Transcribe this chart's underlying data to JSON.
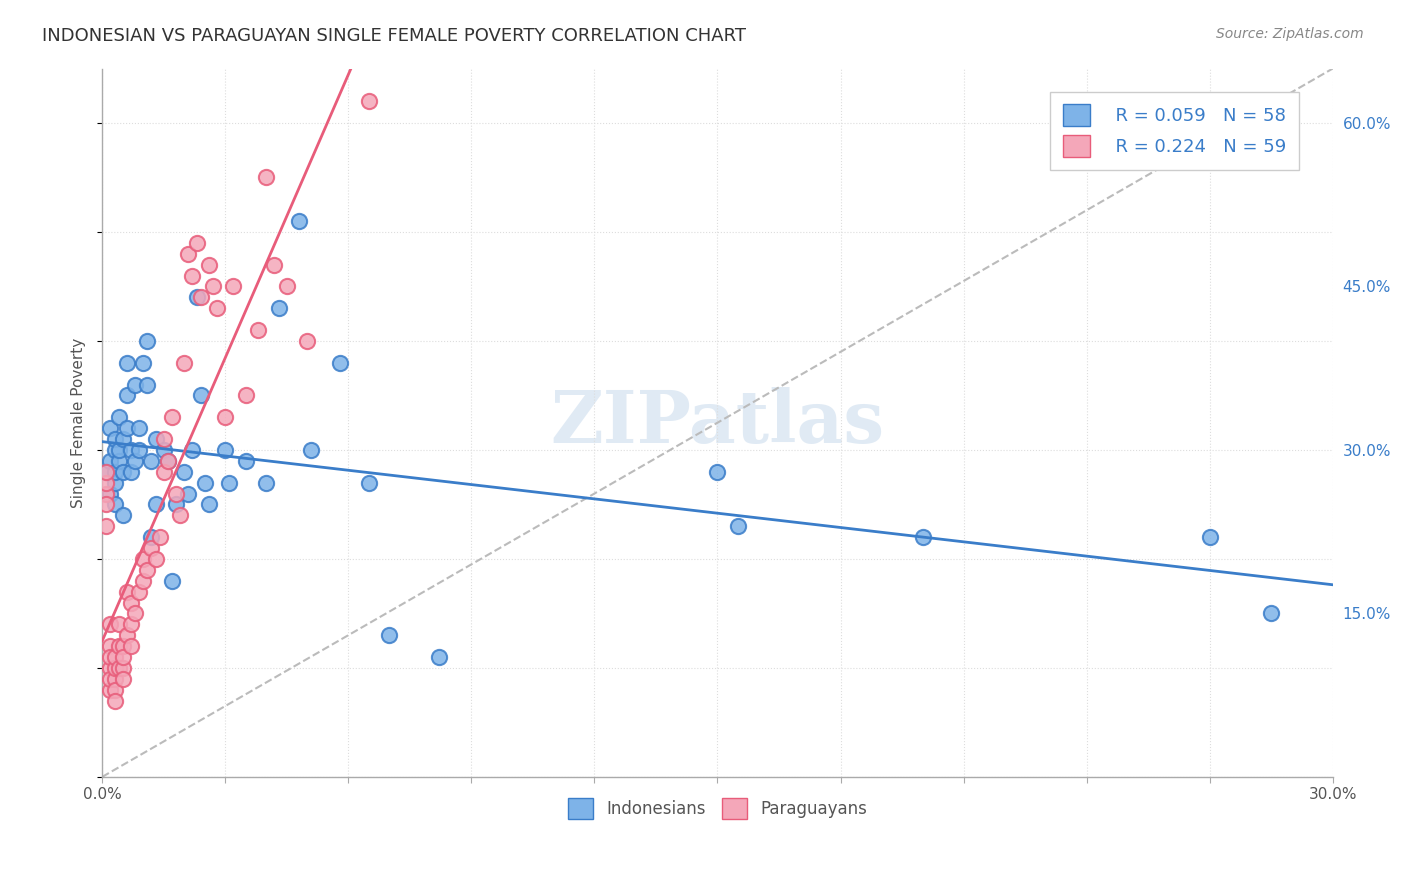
{
  "title": "INDONESIAN VS PARAGUAYAN SINGLE FEMALE POVERTY CORRELATION CHART",
  "source": "Source: ZipAtlas.com",
  "ylabel": "Single Female Poverty",
  "xlim": [
    0.0,
    0.3
  ],
  "ylim": [
    0.0,
    0.65
  ],
  "xticks": [
    0.0,
    0.03,
    0.06,
    0.09,
    0.12,
    0.15,
    0.18,
    0.21,
    0.24,
    0.27,
    0.3
  ],
  "yticks_right": [
    0.15,
    0.3,
    0.45,
    0.6
  ],
  "ytick_labels_right": [
    "15.0%",
    "30.0%",
    "45.0%",
    "60.0%"
  ],
  "xtick_labels": [
    "0.0%",
    "",
    "",
    "",
    "",
    "",
    "",
    "",
    "",
    "",
    "30.0%"
  ],
  "R_indonesian": 0.059,
  "N_indonesian": 58,
  "R_paraguayan": 0.224,
  "N_paraguayan": 59,
  "indonesian_color": "#7EB3E8",
  "paraguayan_color": "#F4A7B9",
  "indonesian_line_color": "#3A7DC9",
  "paraguayan_line_color": "#E85C7A",
  "diagonal_line_color": "#BBBBBB",
  "watermark": "ZIPatlas",
  "watermark_color": "#CCDDEE",
  "legend_label_color": "#3A7DC9",
  "indonesian_x": [
    0.001,
    0.002,
    0.002,
    0.002,
    0.003,
    0.003,
    0.003,
    0.003,
    0.003,
    0.004,
    0.004,
    0.004,
    0.005,
    0.005,
    0.005,
    0.006,
    0.006,
    0.006,
    0.007,
    0.007,
    0.008,
    0.008,
    0.009,
    0.009,
    0.01,
    0.011,
    0.011,
    0.012,
    0.012,
    0.013,
    0.013,
    0.015,
    0.016,
    0.017,
    0.018,
    0.02,
    0.021,
    0.022,
    0.023,
    0.024,
    0.025,
    0.026,
    0.03,
    0.031,
    0.035,
    0.04,
    0.043,
    0.048,
    0.051,
    0.058,
    0.065,
    0.07,
    0.082,
    0.15,
    0.155,
    0.2,
    0.27,
    0.285
  ],
  "indonesian_y": [
    0.28,
    0.26,
    0.29,
    0.32,
    0.27,
    0.3,
    0.31,
    0.28,
    0.25,
    0.29,
    0.33,
    0.3,
    0.28,
    0.24,
    0.31,
    0.35,
    0.38,
    0.32,
    0.3,
    0.28,
    0.29,
    0.36,
    0.3,
    0.32,
    0.38,
    0.4,
    0.36,
    0.29,
    0.22,
    0.31,
    0.25,
    0.3,
    0.29,
    0.18,
    0.25,
    0.28,
    0.26,
    0.3,
    0.44,
    0.35,
    0.27,
    0.25,
    0.3,
    0.27,
    0.29,
    0.27,
    0.43,
    0.51,
    0.3,
    0.38,
    0.27,
    0.13,
    0.11,
    0.28,
    0.23,
    0.22,
    0.22,
    0.15
  ],
  "paraguayan_x": [
    0.001,
    0.001,
    0.001,
    0.001,
    0.001,
    0.002,
    0.002,
    0.002,
    0.002,
    0.002,
    0.002,
    0.003,
    0.003,
    0.003,
    0.003,
    0.003,
    0.004,
    0.004,
    0.004,
    0.005,
    0.005,
    0.005,
    0.005,
    0.006,
    0.006,
    0.007,
    0.007,
    0.007,
    0.008,
    0.009,
    0.01,
    0.01,
    0.011,
    0.012,
    0.013,
    0.014,
    0.015,
    0.015,
    0.016,
    0.017,
    0.018,
    0.019,
    0.02,
    0.021,
    0.022,
    0.023,
    0.024,
    0.026,
    0.027,
    0.028,
    0.03,
    0.032,
    0.035,
    0.038,
    0.04,
    0.042,
    0.045,
    0.05,
    0.065
  ],
  "paraguayan_y": [
    0.26,
    0.27,
    0.28,
    0.25,
    0.23,
    0.1,
    0.12,
    0.08,
    0.14,
    0.11,
    0.09,
    0.09,
    0.1,
    0.11,
    0.08,
    0.07,
    0.12,
    0.1,
    0.14,
    0.1,
    0.12,
    0.09,
    0.11,
    0.13,
    0.17,
    0.14,
    0.16,
    0.12,
    0.15,
    0.17,
    0.18,
    0.2,
    0.19,
    0.21,
    0.2,
    0.22,
    0.28,
    0.31,
    0.29,
    0.33,
    0.26,
    0.24,
    0.38,
    0.48,
    0.46,
    0.49,
    0.44,
    0.47,
    0.45,
    0.43,
    0.33,
    0.45,
    0.35,
    0.41,
    0.55,
    0.47,
    0.45,
    0.4,
    0.62
  ]
}
